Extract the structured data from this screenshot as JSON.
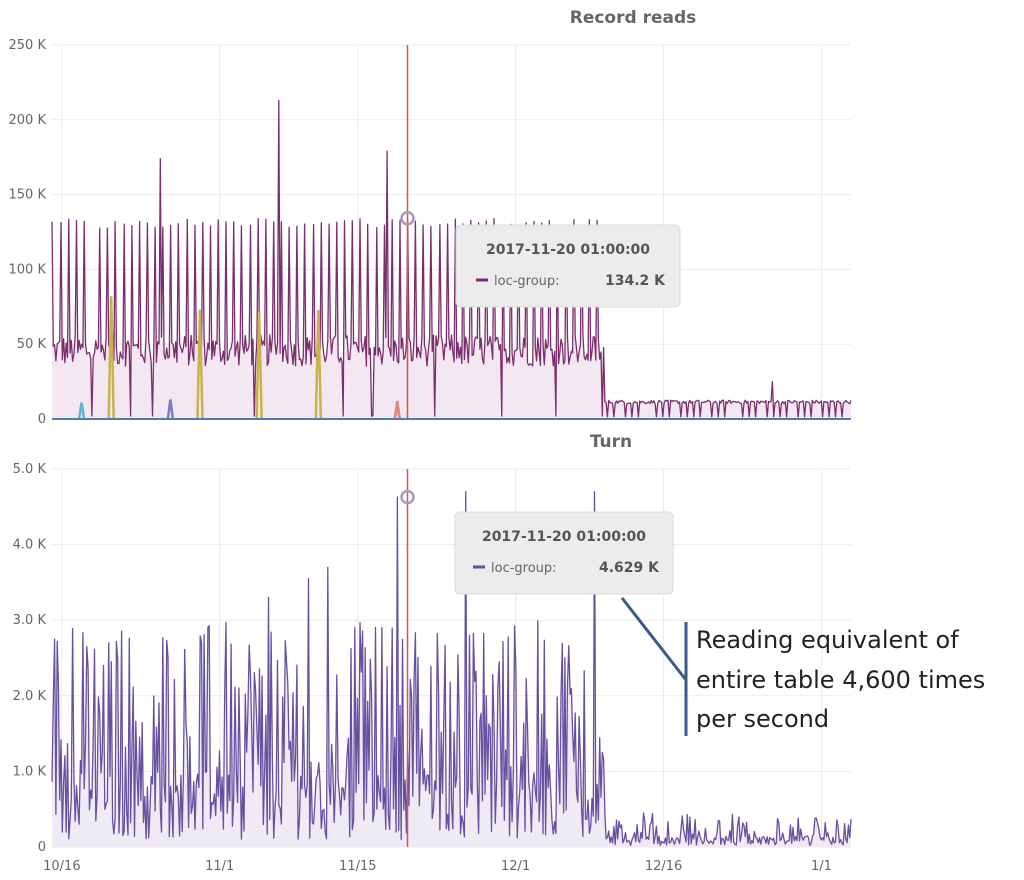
{
  "chart_data": [
    {
      "type": "area",
      "title": "Record reads",
      "y_ticks": [
        "0",
        "50 K",
        "100 K",
        "150 K",
        "200 K",
        "250 K"
      ],
      "ylim": [
        0,
        250000
      ],
      "grid": true,
      "cursor_date": "2017-11-20 01:00:00",
      "tooltip": {
        "time": "2017-11-20 01:00:00",
        "series_name": "loc-group:",
        "value": "134.2 K"
      },
      "colors": {
        "main": "#7b2e6e",
        "fill": "#f3e8f1",
        "cursor": "#e05050",
        "marker": "#a79ab8",
        "baseline": "#4a7fb5"
      },
      "main_series": {
        "name": "loc-group",
        "peak_value": 134200,
        "baseline_value": 47000,
        "low_value": 12000,
        "step_down_date": "2017-12-10",
        "spikes": [
          {
            "date": "2017-10-26",
            "value": 174000
          },
          {
            "date": "2017-11-07",
            "value": 213000
          },
          {
            "date": "2017-11-18",
            "value": 179000
          },
          {
            "date": "2017-12-27",
            "value": 25000
          }
        ]
      },
      "minor_series": [
        {
          "color": "#c9b24a",
          "spikes": [
            {
              "date": "2017-10-21",
              "value": 82000
            },
            {
              "date": "2017-10-30",
              "value": 73000
            },
            {
              "date": "2017-11-05",
              "value": 72000
            },
            {
              "date": "2017-11-11",
              "value": 73000
            }
          ]
        },
        {
          "color": "#5fb4d9",
          "spikes": [
            {
              "date": "2017-10-18",
              "value": 11000
            }
          ]
        },
        {
          "color": "#7f79c9",
          "spikes": [
            {
              "date": "2017-10-27",
              "value": 13000
            },
            {
              "date": "2017-11-19",
              "value": 10000
            }
          ]
        },
        {
          "color": "#e08a7a",
          "spikes": [
            {
              "date": "2017-11-19",
              "value": 12000
            }
          ]
        }
      ]
    },
    {
      "type": "area",
      "title": "Turn",
      "x_ticks": [
        "10/16",
        "11/1",
        "11/15",
        "12/1",
        "12/16",
        "1/1"
      ],
      "y_ticks": [
        "0",
        "1.0 K",
        "2.0 K",
        "3.0 K",
        "4.0 K",
        "5.0 K"
      ],
      "ylim": [
        0,
        5000
      ],
      "grid": true,
      "cursor_date": "2017-11-20 01:00:00",
      "tooltip": {
        "time": "2017-11-20 01:00:00",
        "series_name": "loc-group:",
        "value": "4.629 K"
      },
      "colors": {
        "main": "#6650a0",
        "fill": "#eeebf5",
        "cursor": "#e05050",
        "marker": "#a79ab8"
      },
      "main_series": {
        "name": "loc-group",
        "peak_value": 4629,
        "range": [
          100,
          3000
        ],
        "low_range": [
          20,
          450
        ],
        "step_down_date": "2017-12-10",
        "spikes": [
          {
            "date": "2017-11-19",
            "value": 4629
          },
          {
            "date": "2017-11-26",
            "value": 4700
          },
          {
            "date": "2017-12-09",
            "value": 4700
          },
          {
            "date": "2017-11-12",
            "value": 3700
          },
          {
            "date": "2017-11-10",
            "value": 3550
          },
          {
            "date": "2017-11-06",
            "value": 3300
          }
        ]
      }
    }
  ],
  "annotation": {
    "lines": [
      "Reading equivalent of",
      "entire table 4,600 times",
      "per second"
    ]
  }
}
